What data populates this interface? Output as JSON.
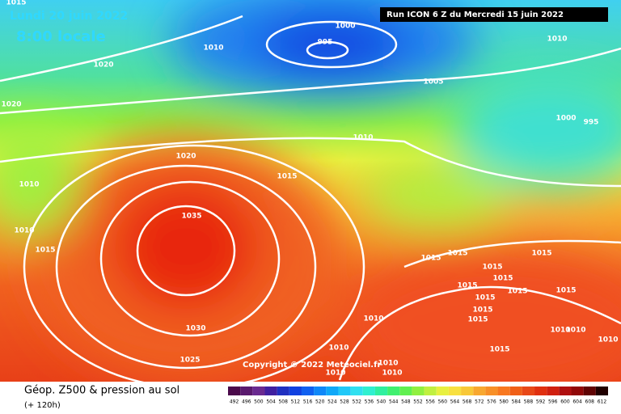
{
  "header": {
    "date": "Lundi 20 juin 2022",
    "time": "8:00 locale",
    "run": "Run ICON 6 Z du Mercredi 15 juin 2022"
  },
  "copyright": "Copyright © 2022 Meteociel.fr",
  "isobars": [
    "1015",
    "1000",
    "995",
    "1010",
    "1010",
    "1020",
    "1005",
    "1020",
    "1000",
    "995",
    "1010",
    "1020",
    "1015",
    "1010",
    "1035",
    "1010",
    "1015",
    "1015",
    "1015",
    "1015",
    "1015",
    "1015",
    "1015",
    "1015",
    "1015",
    "1015",
    "1015",
    "1015",
    "1010",
    "1030",
    "1010",
    "1010",
    "1015",
    "1025",
    "1010",
    "1010",
    "1010",
    "1010",
    "1010"
  ],
  "legend": {
    "title": "Géop. Z500 & pression au sol",
    "subtitle": "(+ 120h)",
    "scale": [
      492,
      496,
      500,
      504,
      508,
      512,
      516,
      520,
      524,
      528,
      532,
      536,
      540,
      544,
      548,
      552,
      556,
      560,
      564,
      568,
      572,
      576,
      580,
      584,
      588,
      592,
      596,
      600,
      604,
      608,
      612
    ],
    "colors": [
      "#4b0a4b",
      "#5a1a6e",
      "#6a2a90",
      "#4020a0",
      "#2030c0",
      "#1040e0",
      "#1060f0",
      "#1088f8",
      "#10a8f8",
      "#20c8f8",
      "#30e0f0",
      "#30f0d0",
      "#30f0a0",
      "#40f070",
      "#60f050",
      "#90f040",
      "#c0f040",
      "#e8f040",
      "#f8e040",
      "#f8c838",
      "#f8a830",
      "#f89028",
      "#f87820",
      "#f06018",
      "#e84818",
      "#e03010",
      "#d02010",
      "#b01010",
      "#900808",
      "#600404",
      "#200000"
    ]
  }
}
